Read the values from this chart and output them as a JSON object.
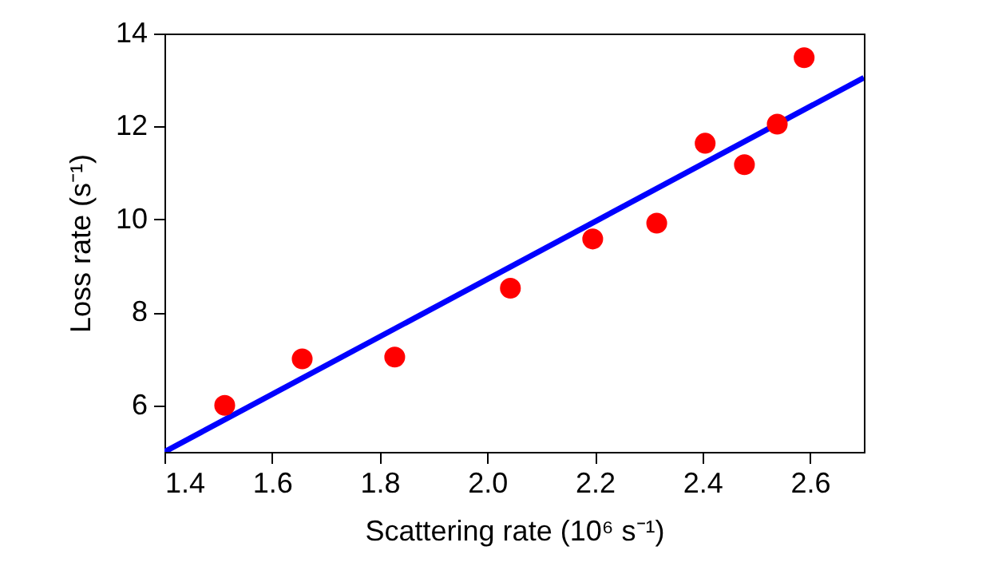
{
  "chart_data": {
    "type": "scatter",
    "xlabel": "Scattering rate (10⁶ s⁻¹)",
    "ylabel": "Loss rate (s⁻¹)",
    "xlim": [
      1.4,
      2.7
    ],
    "ylim": [
      5,
      14
    ],
    "xticks": [
      1.4,
      1.6,
      1.8,
      {
        "value": 2,
        "label": "2.0"
      },
      2.2,
      2.4,
      2.6
    ],
    "yticks": [
      6,
      8,
      10,
      12,
      14
    ],
    "series": [
      {
        "color": "#ff0000",
        "marker": "circle",
        "x": [
          1.512,
          1.656,
          1.828,
          2.043,
          2.196,
          2.315,
          2.405,
          2.478,
          2.539,
          2.589
        ],
        "values": [
          6.0,
          7.0,
          7.04,
          8.52,
          9.58,
          9.92,
          11.64,
          11.18,
          12.05,
          13.48
        ]
      },
      {
        "type": "line",
        "color": "#0000ff",
        "line_style": "solid",
        "x": [
          1.4,
          2.7
        ],
        "values": [
          5.0,
          13.05
        ]
      }
    ]
  }
}
